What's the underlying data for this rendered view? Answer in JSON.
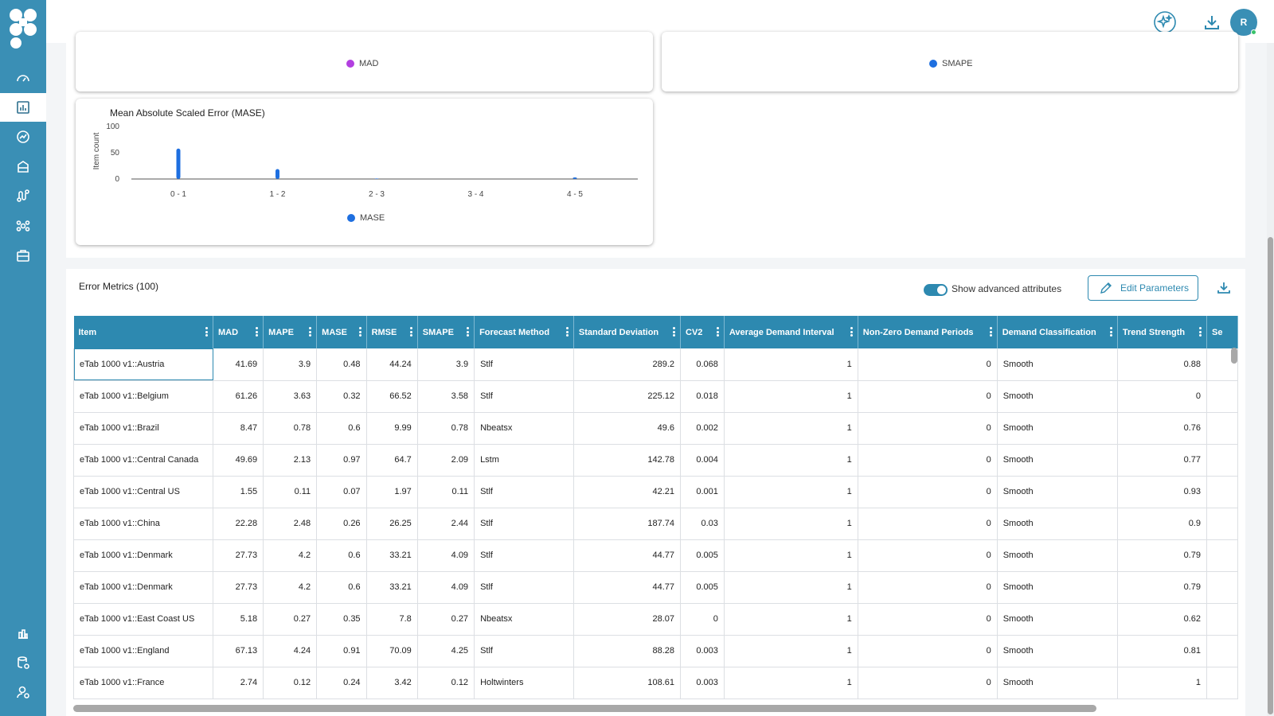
{
  "topbar": {
    "avatar_initial": "R"
  },
  "sidebar": {
    "items": [
      "dashboard-icon",
      "report-icon",
      "analytics-icon",
      "inventory-icon",
      "route-icon",
      "network-icon",
      "briefcase-icon"
    ],
    "bottom_items": [
      "chart-icon",
      "database-settings-icon",
      "user-settings-icon"
    ]
  },
  "charts": {
    "mad_legend": "MAD",
    "mad_color": "#b23fe0",
    "smape_legend": "SMAPE",
    "smape_color": "#1e6fe0",
    "mase": {
      "title": "Mean Absolute Scaled Error (MASE)",
      "ylabel": "Item count",
      "legend": "MASE",
      "color": "#1e6fe0"
    }
  },
  "chart_data": {
    "type": "bar",
    "title": "Mean Absolute Scaled Error (MASE)",
    "xlabel": "",
    "ylabel": "Item count",
    "categories": [
      "0 - 1",
      "1 - 2",
      "2 - 3",
      "3 - 4",
      "4 - 5"
    ],
    "yticks": [
      "100",
      "50",
      "0"
    ],
    "ylim": [
      0,
      100
    ],
    "series": [
      {
        "name": "MASE",
        "values": [
          58,
          19,
          1,
          0,
          3
        ]
      }
    ],
    "grid": false,
    "legend_position": "bottom"
  },
  "table": {
    "title": "Error Metrics (100)",
    "toggle_label": "Show advanced attributes",
    "edit_label": "Edit Parameters",
    "columns": [
      "Item",
      "MAD",
      "MAPE",
      "MASE",
      "RMSE",
      "SMAPE",
      "Forecast Method",
      "Standard Deviation",
      "CV2",
      "Average Demand Interval",
      "Non-Zero Demand Periods",
      "Demand Classification",
      "Trend Strength",
      "Se"
    ],
    "rows": [
      [
        "eTab 1000 v1::Austria",
        "41.69",
        "3.9",
        "0.48",
        "44.24",
        "3.9",
        "Stlf",
        "289.2",
        "0.068",
        "1",
        "0",
        "Smooth",
        "0.88"
      ],
      [
        "eTab 1000 v1::Belgium",
        "61.26",
        "3.63",
        "0.32",
        "66.52",
        "3.58",
        "Stlf",
        "225.12",
        "0.018",
        "1",
        "0",
        "Smooth",
        "0"
      ],
      [
        "eTab 1000 v1::Brazil",
        "8.47",
        "0.78",
        "0.6",
        "9.99",
        "0.78",
        "Nbeatsx",
        "49.6",
        "0.002",
        "1",
        "0",
        "Smooth",
        "0.76"
      ],
      [
        "eTab 1000 v1::Central Canada",
        "49.69",
        "2.13",
        "0.97",
        "64.7",
        "2.09",
        "Lstm",
        "142.78",
        "0.004",
        "1",
        "0",
        "Smooth",
        "0.77"
      ],
      [
        "eTab 1000 v1::Central US",
        "1.55",
        "0.11",
        "0.07",
        "1.97",
        "0.11",
        "Stlf",
        "42.21",
        "0.001",
        "1",
        "0",
        "Smooth",
        "0.93"
      ],
      [
        "eTab 1000 v1::China",
        "22.28",
        "2.48",
        "0.26",
        "26.25",
        "2.44",
        "Stlf",
        "187.74",
        "0.03",
        "1",
        "0",
        "Smooth",
        "0.9"
      ],
      [
        "eTab 1000 v1::Denmark",
        "27.73",
        "4.2",
        "0.6",
        "33.21",
        "4.09",
        "Stlf",
        "44.77",
        "0.005",
        "1",
        "0",
        "Smooth",
        "0.79"
      ],
      [
        "eTab 1000 v1::Denmark",
        "27.73",
        "4.2",
        "0.6",
        "33.21",
        "4.09",
        "Stlf",
        "44.77",
        "0.005",
        "1",
        "0",
        "Smooth",
        "0.79"
      ],
      [
        "eTab 1000 v1::East Coast US",
        "5.18",
        "0.27",
        "0.35",
        "7.8",
        "0.27",
        "Nbeatsx",
        "28.07",
        "0",
        "1",
        "0",
        "Smooth",
        "0.62"
      ],
      [
        "eTab 1000 v1::England",
        "67.13",
        "4.24",
        "0.91",
        "70.09",
        "4.25",
        "Stlf",
        "88.28",
        "0.003",
        "1",
        "0",
        "Smooth",
        "0.81"
      ],
      [
        "eTab 1000 v1::France",
        "2.74",
        "0.12",
        "0.24",
        "3.42",
        "0.12",
        "Holtwinters",
        "108.61",
        "0.003",
        "1",
        "0",
        "Smooth",
        "1"
      ]
    ]
  }
}
